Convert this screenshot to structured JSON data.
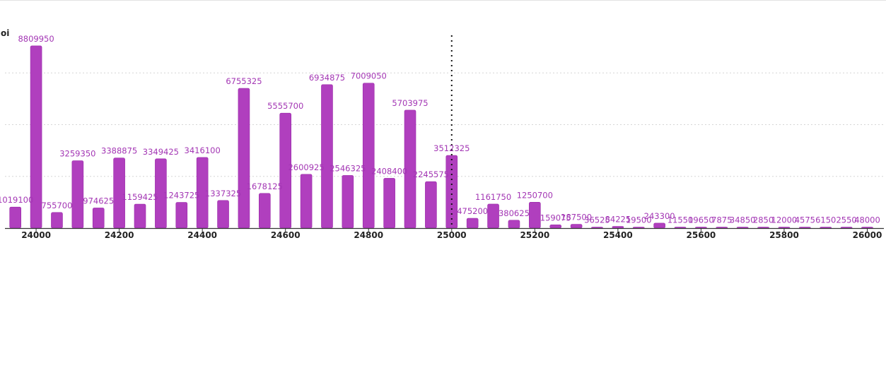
{
  "colors": {
    "bar": "#b03fbe",
    "bar_stroke": "#9a2aa9",
    "label": "#a336b4",
    "grid": "#d6d6d6",
    "axis": "#333333",
    "marker": "#111111"
  },
  "chart_data": {
    "type": "bar",
    "ylabel": "oi",
    "xlabel": "",
    "title": "",
    "x": [
      23950,
      24000,
      24050,
      24100,
      24150,
      24200,
      24250,
      24300,
      24350,
      24400,
      24450,
      24500,
      24550,
      24600,
      24650,
      24700,
      24750,
      24800,
      24850,
      24900,
      24950,
      25000,
      25050,
      25100,
      25150,
      25200,
      25250,
      25300,
      25350,
      25400,
      25450,
      25500,
      25550,
      25600,
      25650,
      25700,
      25750,
      25800,
      25850,
      25900,
      25950,
      26000
    ],
    "values": [
      1019100,
      8809950,
      755700,
      3259350,
      974625,
      3388875,
      1159425,
      3349425,
      1243725,
      3416100,
      1337325,
      6755325,
      1678125,
      5555700,
      2600925,
      6934875,
      2546325,
      7009050,
      2408400,
      5703975,
      2245575,
      3512325,
      475200,
      1161750,
      380625,
      1250700,
      159075,
      187500,
      36525,
      84225,
      19500,
      243300,
      11550,
      19650,
      7875,
      34850,
      2850,
      12000,
      4575,
      6150,
      2550,
      48000
    ],
    "labels": [
      "1019100",
      "8809950",
      "755700",
      "3259350",
      "974625",
      "3388875",
      "1159425",
      "3349425",
      "1243725",
      "3416100",
      "1337325",
      "6755325",
      "1678125",
      "5555700",
      "2600925",
      "6934875",
      "2546325",
      "7009050",
      "2408400",
      "5703975",
      "2245575",
      "3512325",
      "475200",
      "1161750",
      "380625",
      "1250700",
      "159075",
      "187500",
      "36525",
      "84225",
      "19500",
      "243300",
      "11550",
      "19650",
      "7875",
      "34850",
      "2850",
      "12000",
      "4575",
      "6150",
      "2550",
      "48000"
    ],
    "x_ticks": [
      24000,
      24200,
      24400,
      24600,
      24800,
      25000,
      25200,
      25400,
      25600,
      25800,
      26000
    ],
    "x_tick_labels": [
      "24000",
      "24200",
      "24400",
      "24600",
      "24800",
      "25000",
      "25200",
      "25400",
      "25600",
      "25800",
      "26000"
    ],
    "xlim": [
      23925,
      26040
    ],
    "ylim": [
      0,
      10000000
    ],
    "y_gridlines": [
      2500000,
      5000000,
      7500000
    ],
    "grid": "horizontal dotted",
    "marker_line_x": 25000,
    "legend": "none"
  }
}
